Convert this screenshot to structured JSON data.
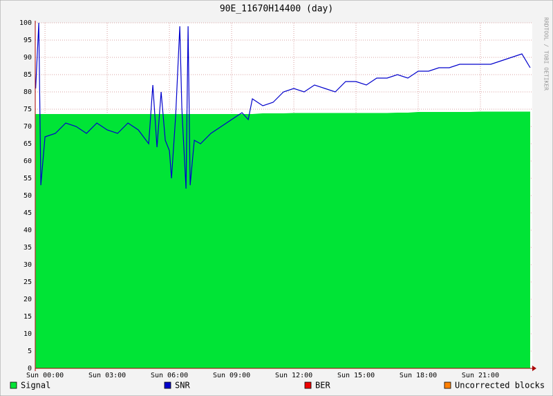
{
  "chart_data": {
    "type": "area-line",
    "title": "90E_11670H14400 (day)",
    "side_label": "RRDTOOL / TOBI OETIKER",
    "x": [
      -0.45,
      -0.3,
      -0.2,
      0,
      0.5,
      1,
      1.5,
      2,
      2.5,
      3,
      3.5,
      4,
      4.5,
      5,
      5.2,
      5.4,
      5.6,
      5.8,
      6,
      6.1,
      6.3,
      6.5,
      6.6,
      6.8,
      6.9,
      7,
      7.2,
      7.5,
      8,
      8.5,
      9,
      9.5,
      9.8,
      10,
      10.5,
      11,
      11.5,
      12,
      12.5,
      13,
      13.5,
      14,
      14.5,
      15,
      15.5,
      16,
      16.5,
      17,
      17.5,
      18,
      18.5,
      19,
      19.5,
      20,
      20.5,
      21,
      21.5,
      22,
      22.5,
      23,
      23.4
    ],
    "series": [
      {
        "name": "Signal",
        "color": "#00e436",
        "kind": "area",
        "values": [
          73.6,
          73.6,
          73.6,
          73.6,
          73.6,
          73.6,
          73.6,
          73.6,
          73.6,
          73.6,
          73.6,
          73.6,
          73.6,
          73.6,
          73.6,
          73.6,
          73.6,
          73.6,
          73.6,
          73.6,
          73.6,
          73.6,
          73.6,
          73.6,
          73.6,
          73.6,
          73.6,
          73.6,
          73.6,
          73.6,
          73.6,
          73.6,
          73.6,
          73.6,
          73.8,
          73.8,
          73.8,
          73.9,
          73.9,
          73.9,
          73.9,
          73.9,
          73.9,
          73.9,
          73.9,
          73.9,
          73.9,
          74,
          74,
          74.2,
          74.2,
          74.2,
          74.2,
          74.2,
          74.2,
          74.3,
          74.3,
          74.3,
          74.3,
          74.3,
          74.3
        ]
      },
      {
        "name": "SNR",
        "color": "#0000cc",
        "kind": "line",
        "values": [
          81,
          100,
          53,
          67,
          68,
          71,
          70,
          68,
          71,
          69,
          68,
          71,
          69,
          65,
          82,
          64,
          80,
          66,
          63,
          55,
          73,
          99,
          75,
          52,
          99,
          53,
          66,
          65,
          68,
          70,
          72,
          74,
          72,
          78,
          76,
          77,
          80,
          81,
          80,
          82,
          81,
          80,
          83,
          83,
          82,
          84,
          84,
          85,
          84,
          86,
          86,
          87,
          87,
          88,
          88,
          88,
          88,
          89,
          90,
          91,
          87
        ]
      },
      {
        "name": "BER",
        "color": "#ee0000",
        "kind": "line",
        "values": [
          null,
          null,
          null,
          null,
          null,
          null,
          null,
          null,
          null,
          null,
          null,
          null,
          null,
          null,
          null,
          null,
          null,
          null,
          null,
          null,
          null,
          null,
          null,
          null,
          null,
          null,
          null,
          null,
          null,
          null,
          null,
          null,
          null,
          null,
          null,
          null,
          null,
          null,
          null,
          null,
          null,
          null,
          null,
          null,
          null,
          null,
          null,
          null,
          null,
          null,
          null,
          null,
          null,
          null,
          null,
          null,
          null,
          null,
          null,
          null,
          null
        ]
      },
      {
        "name": "Uncorrected blocks",
        "color": "#ff8000",
        "kind": "line",
        "values": [
          null,
          null,
          null,
          null,
          null,
          null,
          null,
          null,
          null,
          null,
          null,
          null,
          null,
          null,
          null,
          null,
          null,
          null,
          null,
          null,
          null,
          null,
          null,
          null,
          null,
          null,
          null,
          null,
          null,
          null,
          null,
          null,
          null,
          null,
          null,
          null,
          null,
          null,
          null,
          null,
          null,
          null,
          null,
          null,
          null,
          null,
          null,
          null,
          null,
          null,
          null,
          null,
          null,
          null,
          null,
          null,
          null,
          null,
          null,
          null,
          null
        ]
      }
    ],
    "xlim": [
      -0.47,
      23.5
    ],
    "xticks": [
      {
        "value": 0,
        "label": "Sun 00:00"
      },
      {
        "value": 3,
        "label": "Sun 03:00"
      },
      {
        "value": 6,
        "label": "Sun 06:00"
      },
      {
        "value": 9,
        "label": "Sun 09:00"
      },
      {
        "value": 12,
        "label": "Sun 12:00"
      },
      {
        "value": 15,
        "label": "Sun 15:00"
      },
      {
        "value": 18,
        "label": "Sun 18:00"
      },
      {
        "value": 21,
        "label": "Sun 21:00"
      }
    ],
    "ylim": [
      0,
      100
    ],
    "yticks": [
      0,
      5,
      10,
      15,
      20,
      25,
      30,
      35,
      40,
      45,
      50,
      55,
      60,
      65,
      70,
      75,
      80,
      85,
      90,
      95,
      100
    ],
    "grid": true
  }
}
